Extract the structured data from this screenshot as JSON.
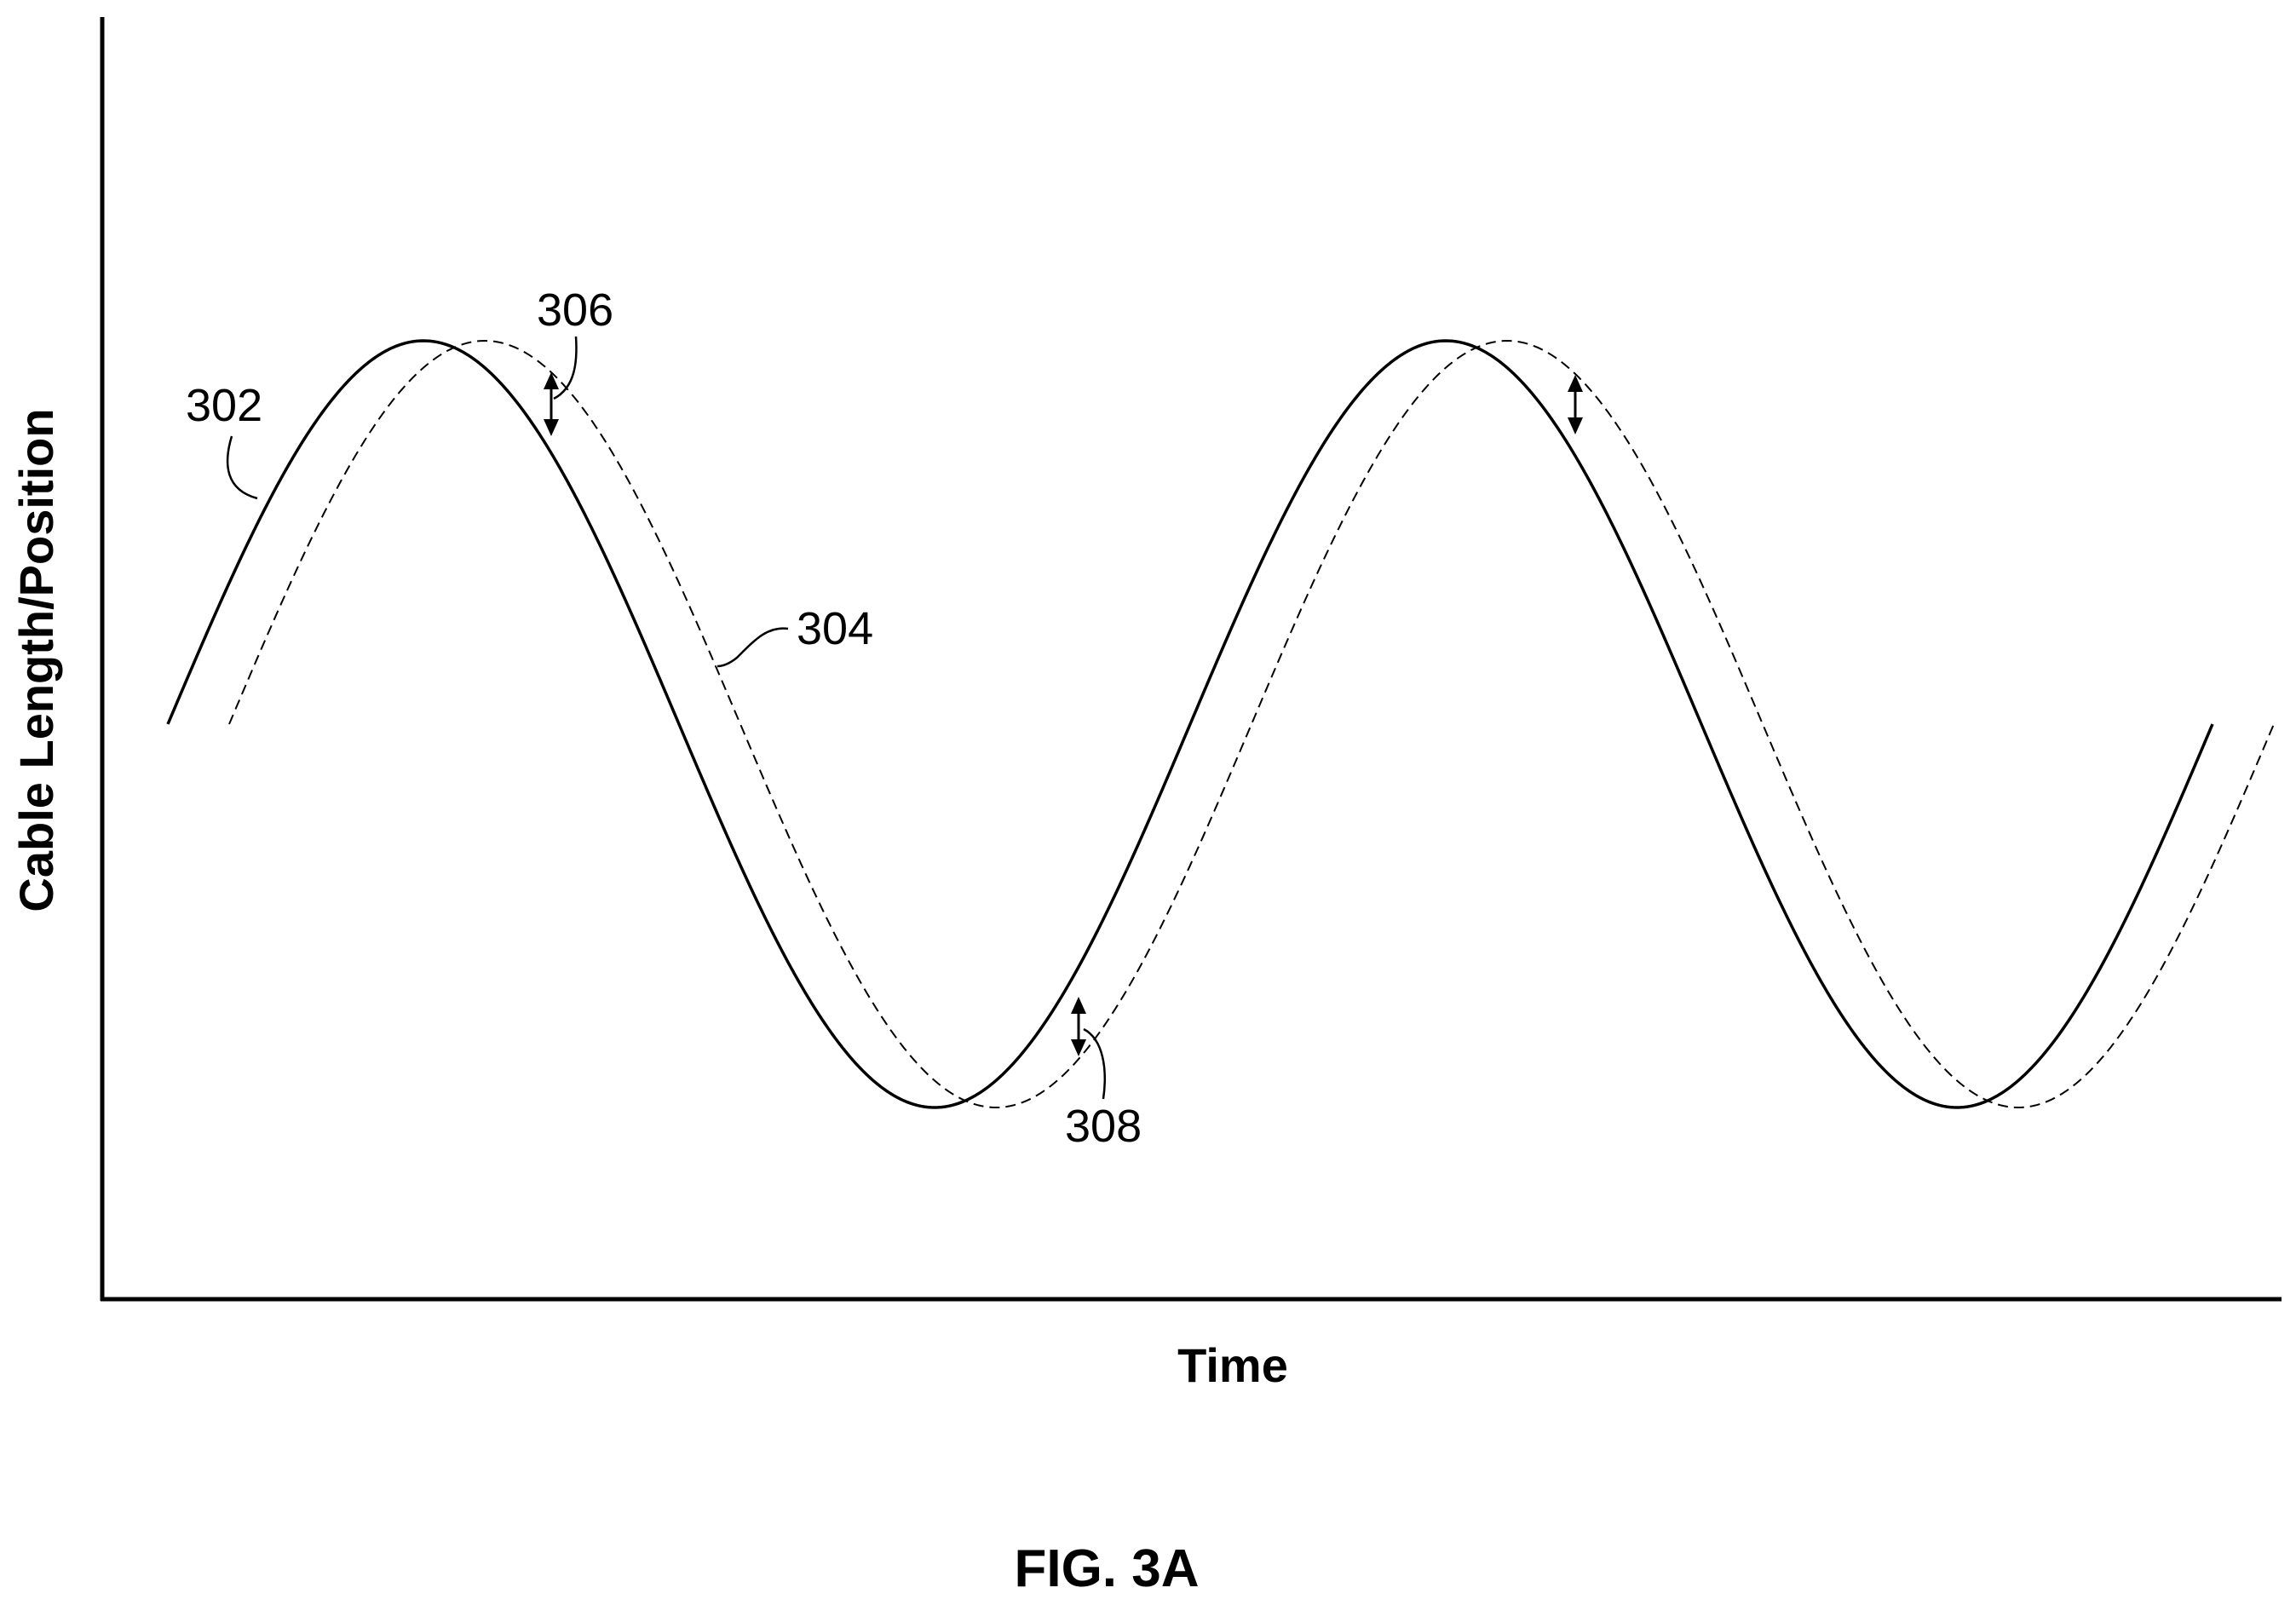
{
  "chart_data": {
    "type": "line",
    "xlabel": "Time",
    "ylabel": "Cable Length/Position",
    "caption": "FIG. 3A",
    "grid": false,
    "legend": "none",
    "x_range": [
      0,
      2.0
    ],
    "y_range": [
      -1.65,
      1.22
    ],
    "series": [
      {
        "reference": "302",
        "line_style": "solid",
        "x": [
          0.0,
          0.125,
          0.25,
          0.375,
          0.5,
          0.625,
          0.75,
          0.875,
          1.0,
          1.125,
          1.25,
          1.375,
          1.5,
          1.625,
          1.75,
          1.875,
          2.0
        ],
        "values": [
          0.0,
          0.71,
          1.0,
          0.71,
          0.0,
          -0.71,
          -1.0,
          -0.71,
          0.0,
          0.71,
          1.0,
          0.71,
          0.0,
          -0.71,
          -1.0,
          -0.71,
          0.0
        ]
      },
      {
        "reference": "304",
        "line_style": "dashed",
        "x": [
          0.06,
          0.185,
          0.31,
          0.435,
          0.56,
          0.685,
          0.81,
          0.935,
          1.06,
          1.185,
          1.31,
          1.435,
          1.56,
          1.685,
          1.81,
          1.935,
          2.06
        ],
        "values": [
          0.0,
          0.71,
          1.0,
          0.71,
          0.0,
          -0.71,
          -1.0,
          -0.71,
          0.0,
          0.71,
          1.0,
          0.71,
          0.0,
          -0.71,
          -1.0,
          -0.71,
          0.0
        ]
      }
    ],
    "annotations": [
      {
        "reference": "302",
        "target": "solid curve"
      },
      {
        "reference": "304",
        "target": "dashed curve"
      },
      {
        "reference": "306",
        "target": "gap between curves on falling slope",
        "at_x": 0.375
      },
      {
        "reference": "308",
        "target": "gap between curves on rising slope",
        "at_x": 0.875
      }
    ]
  }
}
